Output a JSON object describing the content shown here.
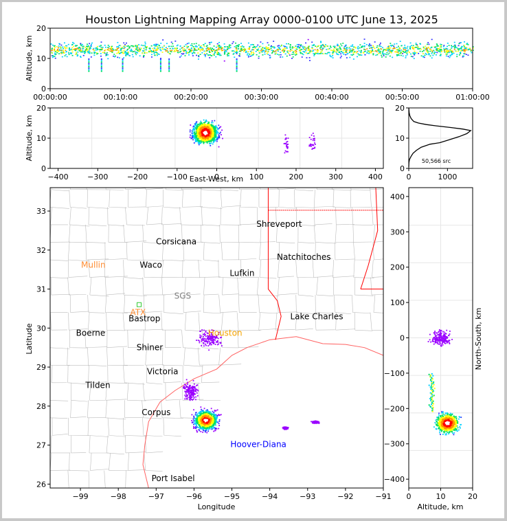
{
  "title": "Houston Lightning Mapping Array 0000-0100 UTC June 13, 2025",
  "chart_data": [
    {
      "id": "altitude_time",
      "type": "heatmap",
      "ylabel": "Altitude, km",
      "xlim": [
        "00:00:00",
        "01:00:00"
      ],
      "ylim": [
        0,
        20
      ],
      "xticks": [
        "00:00:00",
        "00:10:00",
        "00:20:00",
        "00:30:00",
        "00:40:00",
        "00:50:00",
        "01:00:00"
      ],
      "yticks": [
        "0",
        "10",
        "20"
      ],
      "core_altitude_km": [
        10,
        15
      ],
      "peak_altitude_km": 13
    },
    {
      "id": "altitude_eastwest",
      "type": "heatmap",
      "xlabel": "East-West, km",
      "ylabel": "Altitude, km",
      "xlim": [
        -420,
        420
      ],
      "ylim": [
        0,
        20
      ],
      "xticks": [
        "−400",
        "−300",
        "−200",
        "−100",
        "0",
        "100",
        "200",
        "300",
        "400"
      ],
      "yticks": [
        "0",
        "10",
        "20"
      ],
      "clusters": [
        {
          "x_km": -30,
          "alt_km": 12,
          "width_km": 90,
          "intensity": "high"
        },
        {
          "x_km": 175,
          "alt_km": 8,
          "width_km": 20,
          "intensity": "low"
        },
        {
          "x_km": 240,
          "alt_km": 9,
          "width_km": 30,
          "intensity": "low"
        }
      ]
    },
    {
      "id": "altitude_histogram",
      "type": "line",
      "annotation": "50,566 src",
      "xlim": [
        0,
        1650
      ],
      "ylim": [
        0,
        20
      ],
      "xticks": [
        "0",
        "1000"
      ],
      "yticks": [
        "0",
        "10",
        "20"
      ],
      "x": [
        0,
        5,
        20,
        60,
        110,
        200,
        320,
        550,
        800,
        1050,
        1300,
        1500,
        1600,
        1400,
        1100,
        750,
        450,
        250,
        130,
        60,
        25,
        10,
        3,
        1
      ],
      "y": [
        0.5,
        2,
        3,
        4,
        5,
        6,
        7,
        8,
        8.5,
        9.5,
        10.5,
        11.5,
        12.5,
        13,
        13.5,
        14,
        14.5,
        15,
        15.5,
        16.5,
        17.5,
        18.5,
        19.5,
        20
      ]
    },
    {
      "id": "plan_view",
      "type": "scatter",
      "xlabel": "Longitude",
      "ylabel": "Latitude",
      "xlim": [
        -99.8,
        -91
      ],
      "ylim": [
        25.9,
        33.6
      ],
      "xticks": [
        "−99",
        "−98",
        "−97",
        "−96",
        "−95",
        "−94",
        "−93",
        "−92",
        "−91"
      ],
      "yticks": [
        "26",
        "27",
        "28",
        "29",
        "30",
        "31",
        "32",
        "33"
      ],
      "clusters": [
        {
          "lon": -95.7,
          "lat": 27.65,
          "rlon": 0.55,
          "rlat": 0.45,
          "intensity": "high"
        },
        {
          "lon": -95.6,
          "lat": 29.75,
          "rlon": 0.5,
          "rlat": 0.35,
          "intensity": "low"
        },
        {
          "lon": -96.1,
          "lat": 28.4,
          "rlon": 0.35,
          "rlat": 0.4,
          "intensity": "low"
        },
        {
          "lon": -92.8,
          "lat": 27.6,
          "rlon": 0.15,
          "rlat": 0.05,
          "intensity": "low"
        },
        {
          "lon": -93.6,
          "lat": 27.45,
          "rlon": 0.1,
          "rlat": 0.05,
          "intensity": "low"
        }
      ],
      "cities": [
        {
          "name": "Shreveport",
          "lon": -93.75,
          "lat": 32.6,
          "color": "#000000"
        },
        {
          "name": "Corsicana",
          "lon": -96.47,
          "lat": 32.15,
          "color": "#000000"
        },
        {
          "name": "Mullin",
          "lon": -98.66,
          "lat": 31.55,
          "color": "#ff8c32"
        },
        {
          "name": "Waco",
          "lon": -97.14,
          "lat": 31.55,
          "color": "#000000"
        },
        {
          "name": "Natchitoches",
          "lon": -93.1,
          "lat": 31.75,
          "color": "#000000"
        },
        {
          "name": "Lufkin",
          "lon": -94.73,
          "lat": 31.34,
          "color": "#000000"
        },
        {
          "name": "SGS",
          "lon": -96.3,
          "lat": 30.75,
          "color": "#808080"
        },
        {
          "name": "ATX",
          "lon": -97.48,
          "lat": 30.33,
          "color": "#ff8c32"
        },
        {
          "name": "Bastrop",
          "lon": -97.31,
          "lat": 30.17,
          "color": "#000000"
        },
        {
          "name": "Lake Charles",
          "lon": -92.76,
          "lat": 30.23,
          "color": "#000000"
        },
        {
          "name": "Boerne",
          "lon": -98.73,
          "lat": 29.8,
          "color": "#000000"
        },
        {
          "name": "Houston",
          "lon": -95.18,
          "lat": 29.8,
          "color": "#f5a300"
        },
        {
          "name": "Shiner",
          "lon": -97.17,
          "lat": 29.43,
          "color": "#000000"
        },
        {
          "name": "Victoria",
          "lon": -96.83,
          "lat": 28.82,
          "color": "#000000"
        },
        {
          "name": "Tilden",
          "lon": -98.54,
          "lat": 28.46,
          "color": "#000000"
        },
        {
          "name": "Corpus",
          "lon": -97.0,
          "lat": 27.77,
          "color": "#000000"
        },
        {
          "name": "Hoover-Diana",
          "lon": -94.3,
          "lat": 26.95,
          "color": "#0000ff"
        },
        {
          "name": "Port Isabel",
          "lon": -96.55,
          "lat": 26.08,
          "color": "#000000"
        }
      ]
    },
    {
      "id": "northsouth_altitude",
      "type": "heatmap",
      "xlabel": "Altitude, km",
      "ylabel": "North-South, km",
      "xlim": [
        0,
        20
      ],
      "ylim": [
        -425,
        425
      ],
      "xticks": [
        "0",
        "10",
        "20"
      ],
      "yticks": [
        "−400",
        "−300",
        "−200",
        "−100",
        "0",
        "100",
        "200",
        "300",
        "400"
      ],
      "clusters": [
        {
          "y_km": -240,
          "alt_km": 12,
          "intensity": "high"
        },
        {
          "y_km": 0,
          "alt_km": 10,
          "intensity": "low"
        }
      ]
    }
  ],
  "colors": {
    "density": [
      "#9a00ff",
      "#3030ff",
      "#00d0ff",
      "#00e060",
      "#ffff00",
      "#ff9000",
      "#ff0000",
      "#ffffff"
    ],
    "map_lines": "#bbbbbb",
    "state_lines": "#ff0000",
    "coast": "#ff6060"
  }
}
